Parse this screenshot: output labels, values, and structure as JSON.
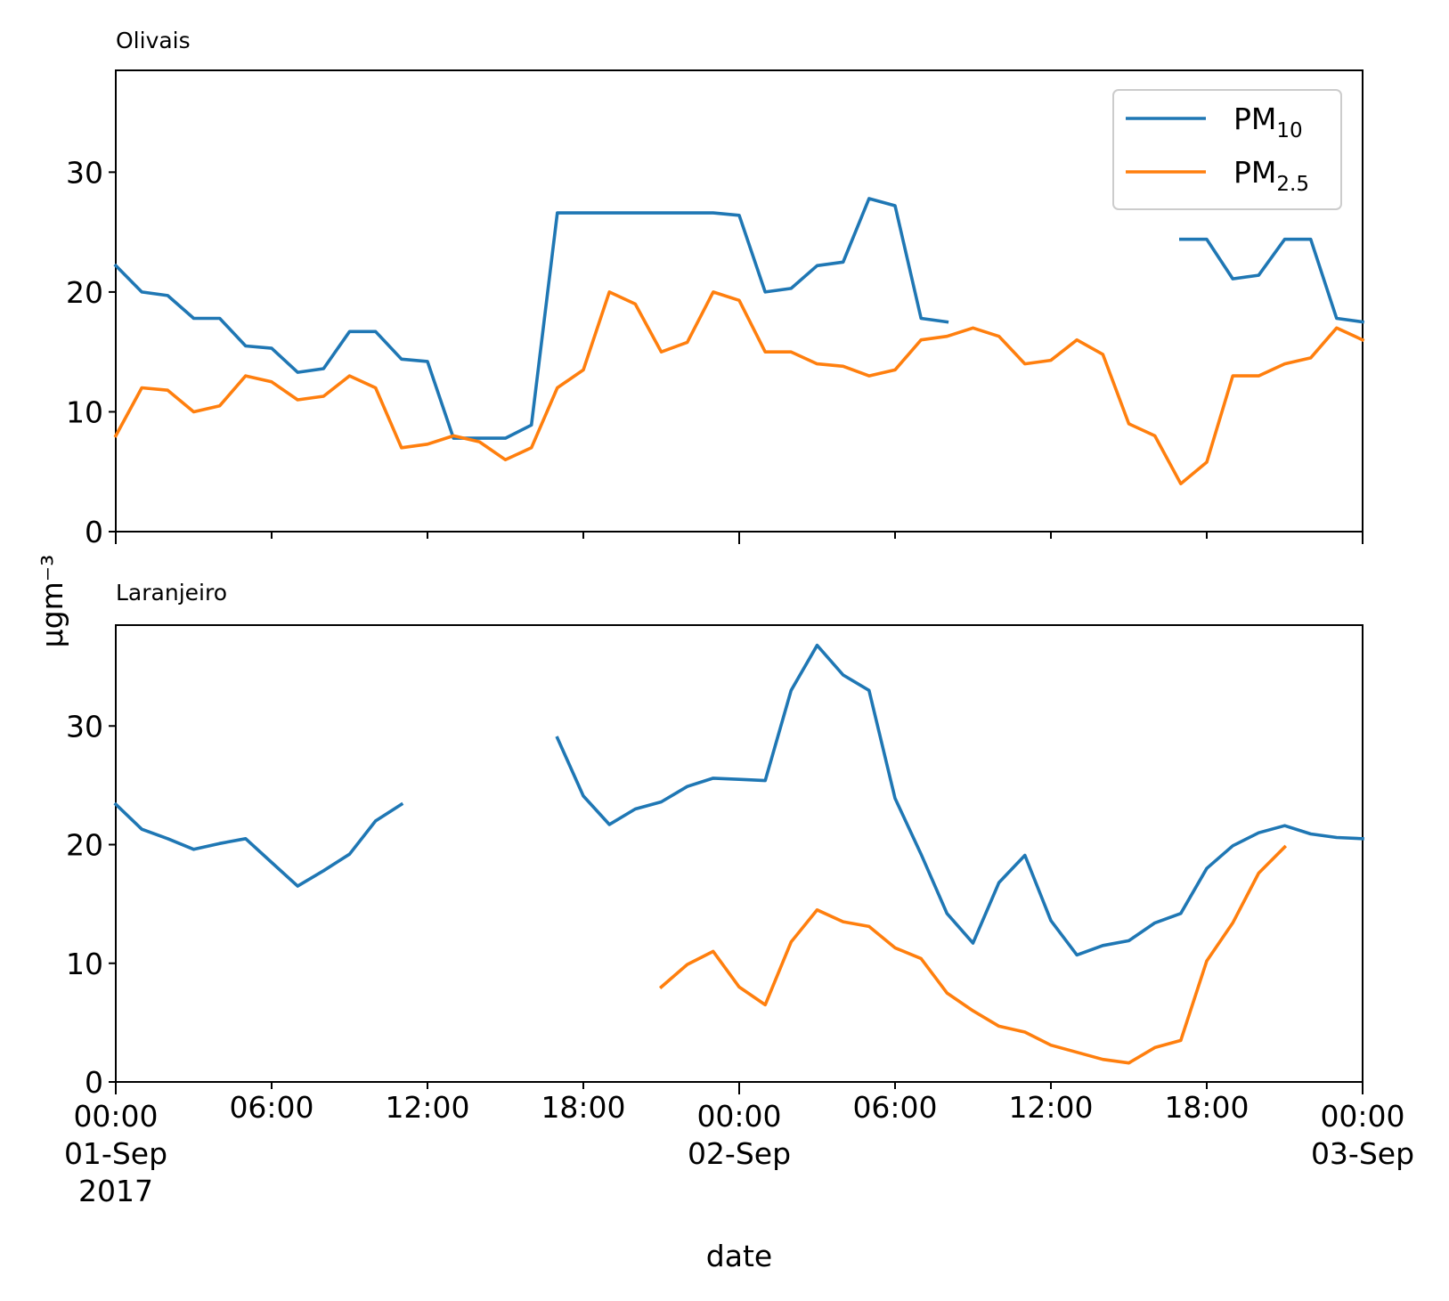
{
  "chart_data": {
    "type": "line",
    "ylabel": "μgm⁻³",
    "xlabel": "date",
    "x_start": "2017-09-01T00:00",
    "x_end": "2017-09-03T00:00",
    "x_step": "1h",
    "x_ticks": [
      {
        "time": "2017-09-01T00:00",
        "lines": [
          "00:00",
          "01-Sep",
          "2017"
        ]
      },
      {
        "time": "2017-09-01T06:00",
        "lines": [
          "06:00"
        ]
      },
      {
        "time": "2017-09-01T12:00",
        "lines": [
          "12:00"
        ]
      },
      {
        "time": "2017-09-01T18:00",
        "lines": [
          "18:00"
        ]
      },
      {
        "time": "2017-09-02T00:00",
        "lines": [
          "00:00",
          "02-Sep"
        ]
      },
      {
        "time": "2017-09-02T06:00",
        "lines": [
          "06:00"
        ]
      },
      {
        "time": "2017-09-02T12:00",
        "lines": [
          "12:00"
        ]
      },
      {
        "time": "2017-09-02T18:00",
        "lines": [
          "18:00"
        ]
      },
      {
        "time": "2017-09-03T00:00",
        "lines": [
          "00:00",
          "03-Sep"
        ]
      }
    ],
    "yticks": [
      0,
      10,
      20,
      30
    ],
    "ylim": [
      0,
      38.5
    ],
    "legend": {
      "position": "top-right",
      "entries": [
        {
          "base": "PM",
          "sub": "10",
          "color": "#1f77b4"
        },
        {
          "base": "PM",
          "sub": "2.5",
          "color": "#ff7f0e"
        }
      ]
    },
    "panels": [
      {
        "title": "Olivais",
        "series": [
          {
            "name": "PM10",
            "color": "#1f77b4",
            "values": [
              22.2,
              20.0,
              19.7,
              17.8,
              17.8,
              15.5,
              15.3,
              13.3,
              13.6,
              16.7,
              16.7,
              14.4,
              14.2,
              7.8,
              7.8,
              7.8,
              8.9,
              26.6,
              26.6,
              26.6,
              26.6,
              26.6,
              26.6,
              26.6,
              26.4,
              20.0,
              20.3,
              22.2,
              22.5,
              27.8,
              27.2,
              17.8,
              17.5,
              null,
              null,
              null,
              null,
              null,
              null,
              null,
              null,
              24.4,
              24.4,
              21.1,
              21.4,
              24.4,
              24.4,
              17.8,
              17.5
            ]
          },
          {
            "name": "PM2.5",
            "color": "#ff7f0e",
            "values": [
              8.0,
              12.0,
              11.8,
              10.0,
              10.5,
              13.0,
              12.5,
              11.0,
              11.3,
              13.0,
              12.0,
              7.0,
              7.3,
              8.0,
              7.5,
              6.0,
              7.0,
              12.0,
              13.5,
              20.0,
              19.0,
              15.0,
              15.8,
              20.0,
              19.3,
              15.0,
              15.0,
              14.0,
              13.8,
              13.0,
              13.5,
              16.0,
              16.3,
              17.0,
              16.3,
              14.0,
              14.3,
              16.0,
              14.8,
              9.0,
              8.0,
              4.0,
              5.8,
              13.0,
              13.0,
              14.0,
              14.5,
              17.0,
              16.0
            ]
          }
        ]
      },
      {
        "title": "Laranjeiro",
        "series": [
          {
            "name": "PM10",
            "color": "#1f77b4",
            "values": [
              23.4,
              21.3,
              20.5,
              19.6,
              20.1,
              20.5,
              18.5,
              16.5,
              17.8,
              19.2,
              22.0,
              23.4,
              null,
              null,
              null,
              null,
              null,
              29.0,
              24.1,
              21.7,
              23.0,
              23.6,
              24.9,
              25.6,
              25.5,
              25.4,
              33.0,
              36.8,
              34.3,
              33.0,
              23.9,
              19.2,
              14.2,
              11.7,
              16.8,
              19.1,
              13.6,
              10.7,
              11.5,
              11.9,
              13.4,
              14.2,
              18.0,
              19.9,
              21.0,
              21.6,
              20.9,
              20.6,
              20.5
            ]
          },
          {
            "name": "PM2.5",
            "color": "#ff7f0e",
            "values": [
              null,
              null,
              null,
              null,
              null,
              null,
              null,
              null,
              null,
              null,
              null,
              null,
              null,
              null,
              null,
              null,
              null,
              null,
              null,
              null,
              null,
              8.0,
              9.9,
              11.0,
              8.0,
              6.5,
              11.8,
              14.5,
              13.5,
              13.1,
              11.3,
              10.4,
              7.5,
              6.0,
              4.7,
              4.2,
              3.1,
              2.5,
              1.9,
              1.6,
              2.9,
              3.5,
              10.2,
              13.4,
              17.6,
              19.8,
              null,
              null,
              null
            ]
          }
        ]
      }
    ]
  }
}
